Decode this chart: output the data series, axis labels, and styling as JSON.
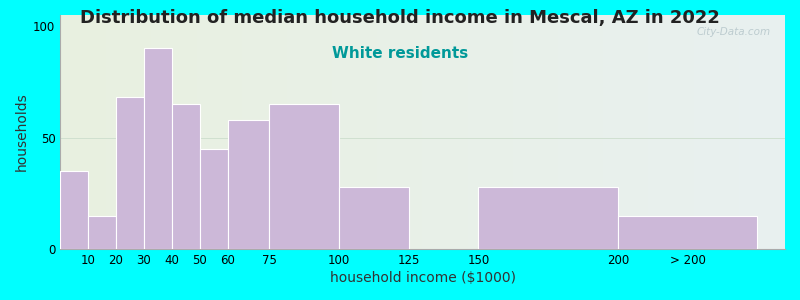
{
  "title": "Distribution of median household income in Mescal, AZ in 2022",
  "subtitle": "White residents",
  "xlabel": "household income ($1000)",
  "ylabel": "households",
  "bar_lefts": [
    0,
    10,
    20,
    30,
    40,
    50,
    60,
    75,
    100,
    125,
    150,
    200
  ],
  "bar_widths": [
    10,
    10,
    10,
    10,
    10,
    10,
    15,
    25,
    25,
    25,
    50,
    50
  ],
  "bar_heights": [
    35,
    15,
    68,
    90,
    65,
    45,
    58,
    65,
    28,
    0,
    28,
    15
  ],
  "bar_xticks": [
    10,
    20,
    30,
    40,
    50,
    60,
    75,
    100,
    125,
    150,
    200
  ],
  "bar_xtick_extra": "> 200",
  "bar_color": "#ccb8d8",
  "bar_edge_color": "#ffffff",
  "ylim": [
    0,
    105
  ],
  "yticks": [
    0,
    50,
    100
  ],
  "xlim": [
    0,
    260
  ],
  "background_outer": "#00ffff",
  "bg_color_left": "#e8f0e0",
  "bg_color_right": "#e8f0f0",
  "title_fontsize": 13,
  "subtitle_fontsize": 11,
  "subtitle_color": "#009999",
  "axis_label_fontsize": 10,
  "tick_fontsize": 8.5,
  "watermark_text": "City-Data.com",
  "watermark_color": "#b8c8cc"
}
